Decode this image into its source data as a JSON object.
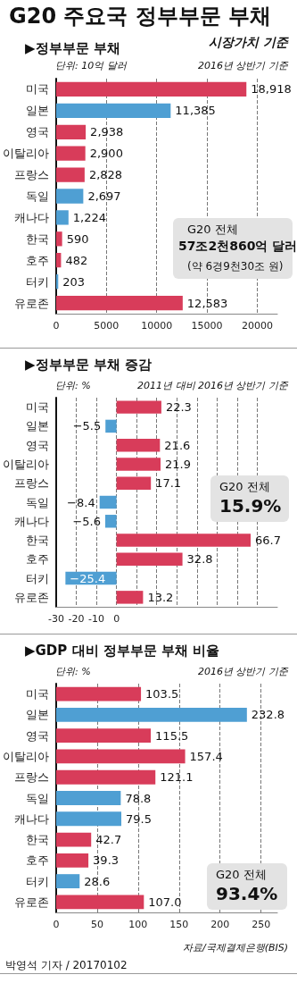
{
  "chart_data": [
    {
      "type": "bar",
      "orientation": "horizontal",
      "title": "G20 주요국 정부부문 부채",
      "subtitle": "▶정부부문 부채",
      "categories": [
        "미국",
        "일본",
        "영국",
        "이탈리아",
        "프랑스",
        "독일",
        "캐나다",
        "한국",
        "호주",
        "터키",
        "유로존"
      ],
      "values": [
        18918,
        11385,
        2938,
        2900,
        2828,
        2697,
        1224,
        590,
        482,
        203,
        12583
      ],
      "value_labels": [
        "18,918",
        "11,385",
        "2,938",
        "2,900",
        "2,828",
        "2,697",
        "1,224",
        "590",
        "482",
        "203",
        "12,583"
      ],
      "colors": [
        "#d83c5a",
        "#4f9fd3",
        "#d83c5a",
        "#d83c5a",
        "#d83c5a",
        "#4f9fd3",
        "#4f9fd3",
        "#d83c5a",
        "#d83c5a",
        "#4f9fd3",
        "#d83c5a"
      ],
      "xlim": [
        0,
        22000
      ],
      "xticks": [
        0,
        5000,
        10000,
        15000,
        20000
      ],
      "grid": "x",
      "annotations": [
        "시장가치 기준",
        "단위: 10억 달러",
        "2016년 상반기 기준",
        "G20 전체",
        "57조2천860억 달러",
        "(약 6경9천30조 원)"
      ]
    },
    {
      "type": "bar",
      "orientation": "horizontal",
      "title": "▶정부부문 부채 증감",
      "categories": [
        "미국",
        "일본",
        "영국",
        "이탈리아",
        "프랑스",
        "독일",
        "캐나다",
        "한국",
        "호주",
        "터키",
        "유로존"
      ],
      "values": [
        22.3,
        -5.5,
        21.6,
        21.9,
        17.1,
        -8.4,
        -5.6,
        66.7,
        32.8,
        -25.4,
        13.2
      ],
      "value_labels": [
        "22.3",
        "−5.5",
        "21.6",
        "21.9",
        "17.1",
        "−8.4",
        "−5.6",
        "66.7",
        "32.8",
        "−25.4",
        "13.2"
      ],
      "colors": [
        "#d83c5a",
        "#4f9fd3",
        "#d83c5a",
        "#d83c5a",
        "#d83c5a",
        "#4f9fd3",
        "#4f9fd3",
        "#d83c5a",
        "#d83c5a",
        "#4f9fd3",
        "#d83c5a"
      ],
      "xlim": [
        -30,
        80
      ],
      "xticks": [
        -30,
        -20,
        -10,
        0,
        {
          "value": 10,
          "label": null
        },
        {
          "value": 20,
          "label": null
        },
        {
          "value": 30,
          "label": null
        },
        {
          "value": 40,
          "label": null
        },
        {
          "value": 50,
          "label": null
        },
        {
          "value": 60,
          "label": null
        },
        {
          "value": 70,
          "label": null
        }
      ],
      "grid": "x",
      "annotations": [
        "단위: %",
        "2011년 대비 2016년 상반기 기준",
        "G20 전체",
        "15.9%"
      ]
    },
    {
      "type": "bar",
      "orientation": "horizontal",
      "title": "▶GDP 대비 정부부문 부채 비율",
      "categories": [
        "미국",
        "일본",
        "영국",
        "이탈리아",
        "프랑스",
        "독일",
        "캐나다",
        "한국",
        "호주",
        "터키",
        "유로존"
      ],
      "values": [
        103.5,
        232.8,
        115.5,
        157.4,
        121.1,
        78.8,
        79.5,
        42.7,
        39.3,
        28.6,
        107.0
      ],
      "value_labels": [
        "103.5",
        "232.8",
        "115.5",
        "157.4",
        "121.1",
        "78.8",
        "79.5",
        "42.7",
        "39.3",
        "28.6",
        "107.0"
      ],
      "colors": [
        "#d83c5a",
        "#4f9fd3",
        "#d83c5a",
        "#d83c5a",
        "#d83c5a",
        "#4f9fd3",
        "#4f9fd3",
        "#d83c5a",
        "#d83c5a",
        "#4f9fd3",
        "#d83c5a"
      ],
      "xlim": [
        0,
        270
      ],
      "xticks": [
        0,
        50,
        100,
        150,
        200,
        250
      ],
      "grid": "x",
      "annotations": [
        "단위: %",
        "2016년 상반기 기준",
        "G20 전체",
        "93.4%",
        "자료/국제결제은행(BIS)",
        "박영석 기자 / 20170102"
      ]
    }
  ]
}
